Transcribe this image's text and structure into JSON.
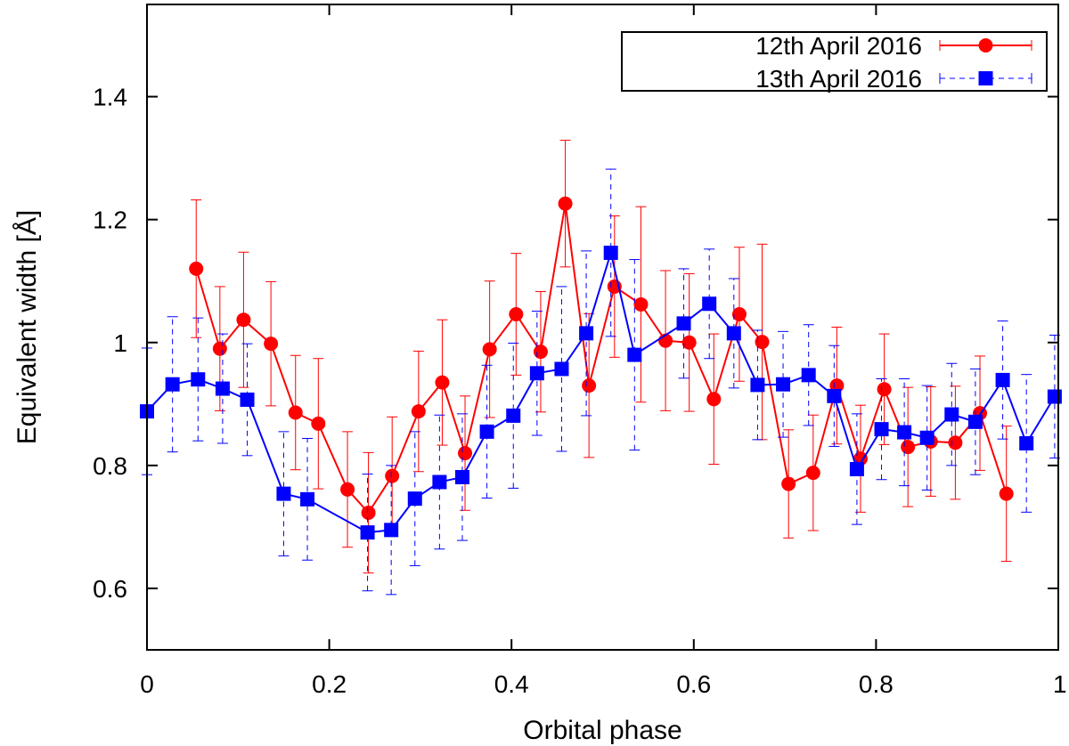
{
  "chart_data": {
    "type": "scatter",
    "xlabel": "Orbital phase",
    "ylabel": "Equivalent width [Å]",
    "xlim": [
      0,
      1
    ],
    "ylim": [
      0.5,
      1.55
    ],
    "xticks": [
      0,
      0.2,
      0.4,
      0.6,
      0.8,
      1
    ],
    "xtick_labels": [
      "0",
      "0.2",
      "0.4",
      "0.6",
      "0.8",
      "1"
    ],
    "yticks": [
      0.6,
      0.8,
      1.0,
      1.2,
      1.4
    ],
    "ytick_labels": [
      "0.6",
      "0.8",
      "1",
      "1.2",
      "1.4"
    ],
    "grid": false,
    "legend_position": "top-right",
    "series": [
      {
        "name": "12th April 2016",
        "color": "#ff0000",
        "marker": "circle",
        "line": "solid",
        "errorbar_style": "solid",
        "points": [
          {
            "x": 0.054,
            "y": 1.12,
            "err": 0.112
          },
          {
            "x": 0.08,
            "y": 0.99,
            "err": 0.101
          },
          {
            "x": 0.106,
            "y": 1.037,
            "err": 0.11
          },
          {
            "x": 0.136,
            "y": 0.998,
            "err": 0.101
          },
          {
            "x": 0.163,
            "y": 0.886,
            "err": 0.093
          },
          {
            "x": 0.188,
            "y": 0.868,
            "err": 0.106
          },
          {
            "x": 0.22,
            "y": 0.761,
            "err": 0.094
          },
          {
            "x": 0.243,
            "y": 0.723,
            "err": 0.098
          },
          {
            "x": 0.269,
            "y": 0.783,
            "err": 0.096
          },
          {
            "x": 0.298,
            "y": 0.888,
            "err": 0.098
          },
          {
            "x": 0.324,
            "y": 0.935,
            "err": 0.102
          },
          {
            "x": 0.349,
            "y": 0.82,
            "err": 0.093
          },
          {
            "x": 0.376,
            "y": 0.989,
            "err": 0.111
          },
          {
            "x": 0.405,
            "y": 1.046,
            "err": 0.099
          },
          {
            "x": 0.432,
            "y": 0.985,
            "err": 0.098
          },
          {
            "x": 0.459,
            "y": 1.226,
            "err": 0.103
          },
          {
            "x": 0.485,
            "y": 0.93,
            "err": 0.117
          },
          {
            "x": 0.513,
            "y": 1.091,
            "err": 0.115
          },
          {
            "x": 0.542,
            "y": 1.062,
            "err": 0.159
          },
          {
            "x": 0.569,
            "y": 1.003,
            "err": 0.114
          },
          {
            "x": 0.595,
            "y": 1.0,
            "err": 0.112
          },
          {
            "x": 0.622,
            "y": 0.908,
            "err": 0.106
          },
          {
            "x": 0.65,
            "y": 1.046,
            "err": 0.109
          },
          {
            "x": 0.675,
            "y": 1.001,
            "err": 0.159
          },
          {
            "x": 0.704,
            "y": 0.77,
            "err": 0.088
          },
          {
            "x": 0.731,
            "y": 0.788,
            "err": 0.094
          },
          {
            "x": 0.757,
            "y": 0.93,
            "err": 0.095
          },
          {
            "x": 0.783,
            "y": 0.811,
            "err": 0.087
          },
          {
            "x": 0.809,
            "y": 0.924,
            "err": 0.09
          },
          {
            "x": 0.835,
            "y": 0.83,
            "err": 0.097
          },
          {
            "x": 0.86,
            "y": 0.839,
            "err": 0.089
          },
          {
            "x": 0.887,
            "y": 0.837,
            "err": 0.092
          },
          {
            "x": 0.914,
            "y": 0.885,
            "err": 0.093
          },
          {
            "x": 0.943,
            "y": 0.754,
            "err": 0.11
          }
        ]
      },
      {
        "name": "13th April 2016",
        "color": "#0000ff",
        "marker": "square",
        "line": "solid",
        "errorbar_style": "dashed",
        "points": [
          {
            "x": 0.0,
            "y": 0.888,
            "err": 0.103
          },
          {
            "x": 0.028,
            "y": 0.932,
            "err": 0.11
          },
          {
            "x": 0.056,
            "y": 0.94,
            "err": 0.1
          },
          {
            "x": 0.083,
            "y": 0.925,
            "err": 0.089
          },
          {
            "x": 0.11,
            "y": 0.907,
            "err": 0.091
          },
          {
            "x": 0.15,
            "y": 0.754,
            "err": 0.101
          },
          {
            "x": 0.176,
            "y": 0.745,
            "err": 0.099
          },
          {
            "x": 0.242,
            "y": 0.691,
            "err": 0.095
          },
          {
            "x": 0.268,
            "y": 0.695,
            "err": 0.105
          },
          {
            "x": 0.294,
            "y": 0.746,
            "err": 0.109
          },
          {
            "x": 0.321,
            "y": 0.773,
            "err": 0.109
          },
          {
            "x": 0.346,
            "y": 0.781,
            "err": 0.103
          },
          {
            "x": 0.373,
            "y": 0.855,
            "err": 0.108
          },
          {
            "x": 0.402,
            "y": 0.881,
            "err": 0.118
          },
          {
            "x": 0.428,
            "y": 0.95,
            "err": 0.101
          },
          {
            "x": 0.455,
            "y": 0.957,
            "err": 0.134
          },
          {
            "x": 0.482,
            "y": 1.015,
            "err": 0.134
          },
          {
            "x": 0.509,
            "y": 1.146,
            "err": 0.136
          },
          {
            "x": 0.535,
            "y": 0.98,
            "err": 0.155
          },
          {
            "x": 0.589,
            "y": 1.031,
            "err": 0.089
          },
          {
            "x": 0.617,
            "y": 1.063,
            "err": 0.089
          },
          {
            "x": 0.644,
            "y": 1.015,
            "err": 0.089
          },
          {
            "x": 0.67,
            "y": 0.931,
            "err": 0.089
          },
          {
            "x": 0.698,
            "y": 0.932,
            "err": 0.086
          },
          {
            "x": 0.726,
            "y": 0.947,
            "err": 0.082
          },
          {
            "x": 0.754,
            "y": 0.913,
            "err": 0.082
          },
          {
            "x": 0.779,
            "y": 0.794,
            "err": 0.09
          },
          {
            "x": 0.806,
            "y": 0.859,
            "err": 0.082
          },
          {
            "x": 0.831,
            "y": 0.854,
            "err": 0.087
          },
          {
            "x": 0.856,
            "y": 0.845,
            "err": 0.085
          },
          {
            "x": 0.883,
            "y": 0.883,
            "err": 0.083
          },
          {
            "x": 0.909,
            "y": 0.871,
            "err": 0.086
          },
          {
            "x": 0.939,
            "y": 0.939,
            "err": 0.096
          },
          {
            "x": 0.965,
            "y": 0.836,
            "err": 0.112
          },
          {
            "x": 0.996,
            "y": 0.912,
            "err": 0.1
          }
        ]
      }
    ]
  }
}
